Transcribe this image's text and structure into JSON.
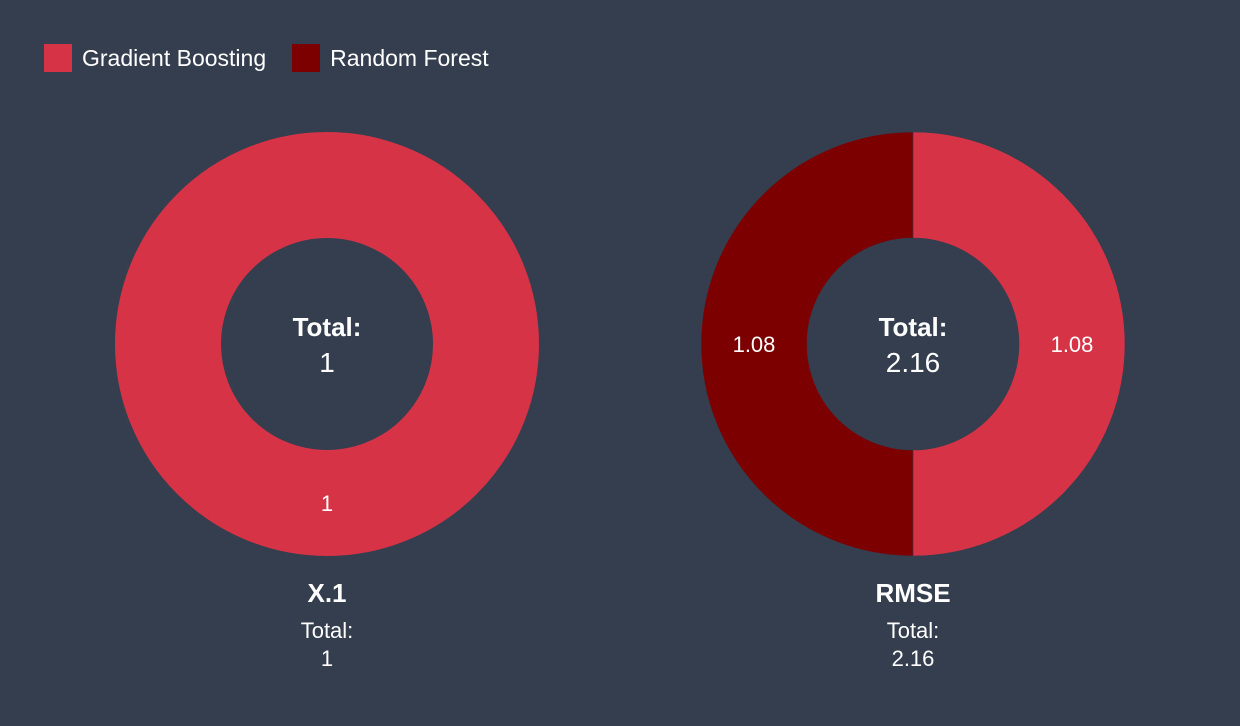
{
  "colors": {
    "background": "#343e4e",
    "Gradient Boosting": "#d63446",
    "Random Forest": "#7c0000"
  },
  "legend": {
    "items": [
      {
        "label": "Gradient Boosting",
        "color": "#d63446"
      },
      {
        "label": "Random Forest",
        "color": "#7c0000"
      }
    ],
    "position": "top-left"
  },
  "chart_data": [
    {
      "type": "pie",
      "subtype": "donut",
      "title": "X.1",
      "total_label": "Total:",
      "total_value": "1",
      "slices": [
        {
          "name": "Gradient Boosting",
          "value": 1,
          "label": "1",
          "color": "#d63446"
        }
      ]
    },
    {
      "type": "pie",
      "subtype": "donut",
      "title": "RMSE",
      "total_label": "Total:",
      "total_value": "2.16",
      "slices": [
        {
          "name": "Gradient Boosting",
          "value": 1.08,
          "label": "1.08",
          "color": "#d63446"
        },
        {
          "name": "Random Forest",
          "value": 1.08,
          "label": "1.08",
          "color": "#7c0000"
        }
      ]
    }
  ]
}
